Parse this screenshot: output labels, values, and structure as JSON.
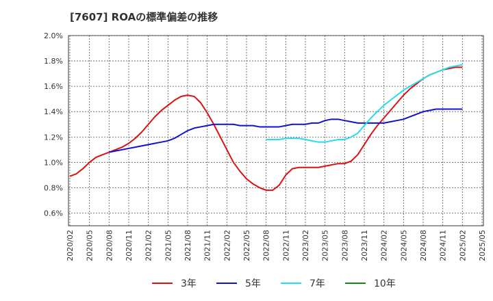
{
  "chart_title": "[7607]  ROAの標準偏差の推移",
  "chart_data": {
    "type": "line",
    "title": "[7607]  ROAの標準偏差の推移",
    "xlabel": "",
    "ylabel": "",
    "ylim": [
      0.5,
      2.0
    ],
    "yticks": [
      0.6,
      0.8,
      1.0,
      1.2,
      1.4,
      1.6,
      1.8,
      2.0
    ],
    "ytick_labels": [
      "0.6%",
      "0.8%",
      "1.0%",
      "1.2%",
      "1.4%",
      "1.6%",
      "1.8%",
      "2.0%"
    ],
    "xticks": [
      "2020/02",
      "2020/05",
      "2020/08",
      "2020/11",
      "2021/02",
      "2021/05",
      "2021/08",
      "2021/11",
      "2022/02",
      "2022/05",
      "2022/08",
      "2022/11",
      "2023/02",
      "2023/05",
      "2023/08",
      "2023/11",
      "2024/02",
      "2024/05",
      "2024/08",
      "2024/11",
      "2025/02",
      "2025/05"
    ],
    "grid": true,
    "legend_position": "bottom",
    "series": [
      {
        "name": "3年",
        "color": "#dd1111",
        "points": [
          [
            "2020/02",
            0.89
          ],
          [
            "2020/03",
            0.91
          ],
          [
            "2020/04",
            0.95
          ],
          [
            "2020/05",
            1.0
          ],
          [
            "2020/06",
            1.04
          ],
          [
            "2020/07",
            1.06
          ],
          [
            "2020/08",
            1.08
          ],
          [
            "2020/09",
            1.1
          ],
          [
            "2020/10",
            1.12
          ],
          [
            "2020/11",
            1.15
          ],
          [
            "2020/12",
            1.19
          ],
          [
            "2021/01",
            1.24
          ],
          [
            "2021/02",
            1.3
          ],
          [
            "2021/03",
            1.36
          ],
          [
            "2021/04",
            1.41
          ],
          [
            "2021/05",
            1.45
          ],
          [
            "2021/06",
            1.49
          ],
          [
            "2021/07",
            1.52
          ],
          [
            "2021/08",
            1.53
          ],
          [
            "2021/09",
            1.52
          ],
          [
            "2021/10",
            1.47
          ],
          [
            "2021/11",
            1.39
          ],
          [
            "2021/12",
            1.3
          ],
          [
            "2022/01",
            1.2
          ],
          [
            "2022/02",
            1.1
          ],
          [
            "2022/03",
            1.0
          ],
          [
            "2022/04",
            0.93
          ],
          [
            "2022/05",
            0.87
          ],
          [
            "2022/06",
            0.83
          ],
          [
            "2022/07",
            0.8
          ],
          [
            "2022/08",
            0.78
          ],
          [
            "2022/09",
            0.78
          ],
          [
            "2022/10",
            0.82
          ],
          [
            "2022/11",
            0.9
          ],
          [
            "2022/12",
            0.95
          ],
          [
            "2023/01",
            0.96
          ],
          [
            "2023/02",
            0.96
          ],
          [
            "2023/03",
            0.96
          ],
          [
            "2023/04",
            0.96
          ],
          [
            "2023/05",
            0.97
          ],
          [
            "2023/06",
            0.98
          ],
          [
            "2023/07",
            0.99
          ],
          [
            "2023/08",
            0.99
          ],
          [
            "2023/09",
            1.01
          ],
          [
            "2023/10",
            1.06
          ],
          [
            "2023/11",
            1.14
          ],
          [
            "2023/12",
            1.22
          ],
          [
            "2024/01",
            1.29
          ],
          [
            "2024/02",
            1.35
          ],
          [
            "2024/03",
            1.41
          ],
          [
            "2024/04",
            1.47
          ],
          [
            "2024/05",
            1.53
          ],
          [
            "2024/06",
            1.58
          ],
          [
            "2024/07",
            1.62
          ],
          [
            "2024/08",
            1.66
          ],
          [
            "2024/09",
            1.69
          ],
          [
            "2024/10",
            1.71
          ],
          [
            "2024/11",
            1.73
          ],
          [
            "2024/12",
            1.74
          ],
          [
            "2025/01",
            1.75
          ],
          [
            "2025/02",
            1.75
          ]
        ]
      },
      {
        "name": "5年",
        "color": "#1111cc",
        "points": [
          [
            "2020/08",
            1.08
          ],
          [
            "2020/09",
            1.09
          ],
          [
            "2020/10",
            1.1
          ],
          [
            "2020/11",
            1.11
          ],
          [
            "2020/12",
            1.12
          ],
          [
            "2021/01",
            1.13
          ],
          [
            "2021/02",
            1.14
          ],
          [
            "2021/03",
            1.15
          ],
          [
            "2021/04",
            1.16
          ],
          [
            "2021/05",
            1.17
          ],
          [
            "2021/06",
            1.19
          ],
          [
            "2021/07",
            1.22
          ],
          [
            "2021/08",
            1.25
          ],
          [
            "2021/09",
            1.27
          ],
          [
            "2021/10",
            1.28
          ],
          [
            "2021/11",
            1.29
          ],
          [
            "2021/12",
            1.3
          ],
          [
            "2022/01",
            1.3
          ],
          [
            "2022/02",
            1.3
          ],
          [
            "2022/03",
            1.3
          ],
          [
            "2022/04",
            1.29
          ],
          [
            "2022/05",
            1.29
          ],
          [
            "2022/06",
            1.29
          ],
          [
            "2022/07",
            1.28
          ],
          [
            "2022/08",
            1.28
          ],
          [
            "2022/09",
            1.28
          ],
          [
            "2022/10",
            1.28
          ],
          [
            "2022/11",
            1.29
          ],
          [
            "2022/12",
            1.3
          ],
          [
            "2023/01",
            1.3
          ],
          [
            "2023/02",
            1.3
          ],
          [
            "2023/03",
            1.31
          ],
          [
            "2023/04",
            1.31
          ],
          [
            "2023/05",
            1.33
          ],
          [
            "2023/06",
            1.34
          ],
          [
            "2023/07",
            1.34
          ],
          [
            "2023/08",
            1.33
          ],
          [
            "2023/09",
            1.32
          ],
          [
            "2023/10",
            1.31
          ],
          [
            "2023/11",
            1.31
          ],
          [
            "2023/12",
            1.31
          ],
          [
            "2024/01",
            1.31
          ],
          [
            "2024/02",
            1.31
          ],
          [
            "2024/03",
            1.32
          ],
          [
            "2024/04",
            1.33
          ],
          [
            "2024/05",
            1.34
          ],
          [
            "2024/06",
            1.36
          ],
          [
            "2024/07",
            1.38
          ],
          [
            "2024/08",
            1.4
          ],
          [
            "2024/09",
            1.41
          ],
          [
            "2024/10",
            1.42
          ],
          [
            "2024/11",
            1.42
          ],
          [
            "2024/12",
            1.42
          ],
          [
            "2025/01",
            1.42
          ],
          [
            "2025/02",
            1.42
          ]
        ]
      },
      {
        "name": "7年",
        "color": "#22ddee",
        "points": [
          [
            "2022/08",
            1.18
          ],
          [
            "2022/09",
            1.18
          ],
          [
            "2022/10",
            1.18
          ],
          [
            "2022/11",
            1.19
          ],
          [
            "2022/12",
            1.19
          ],
          [
            "2023/01",
            1.19
          ],
          [
            "2023/02",
            1.18
          ],
          [
            "2023/03",
            1.17
          ],
          [
            "2023/04",
            1.16
          ],
          [
            "2023/05",
            1.16
          ],
          [
            "2023/06",
            1.17
          ],
          [
            "2023/07",
            1.18
          ],
          [
            "2023/08",
            1.18
          ],
          [
            "2023/09",
            1.2
          ],
          [
            "2023/10",
            1.23
          ],
          [
            "2023/11",
            1.29
          ],
          [
            "2023/12",
            1.35
          ],
          [
            "2024/01",
            1.4
          ],
          [
            "2024/02",
            1.45
          ],
          [
            "2024/03",
            1.49
          ],
          [
            "2024/04",
            1.53
          ],
          [
            "2024/05",
            1.57
          ],
          [
            "2024/06",
            1.6
          ],
          [
            "2024/07",
            1.63
          ],
          [
            "2024/08",
            1.66
          ],
          [
            "2024/09",
            1.69
          ],
          [
            "2024/10",
            1.71
          ],
          [
            "2024/11",
            1.73
          ],
          [
            "2024/12",
            1.75
          ],
          [
            "2025/01",
            1.76
          ],
          [
            "2025/02",
            1.77
          ]
        ]
      },
      {
        "name": "10年",
        "color": "#118811",
        "points": []
      }
    ]
  }
}
